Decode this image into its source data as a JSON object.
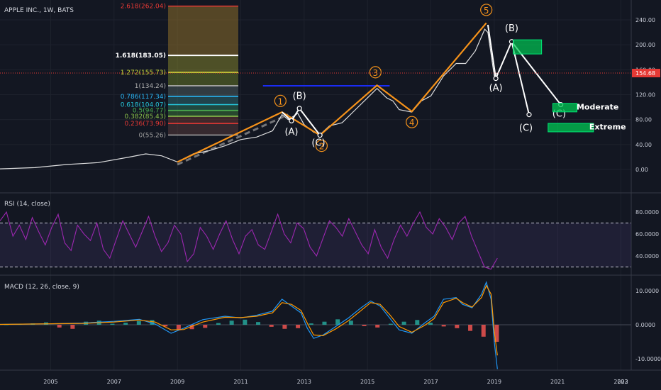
{
  "title": "APPLE INC., 1W, BATS",
  "colors": {
    "background": "#131722",
    "price_line": "#f4f4f4",
    "wave_orange": "#f7931a",
    "wave_white": "#ffffff",
    "blue_level": "#1a2cf5",
    "red_level": "#e53935",
    "rsi_line": "#9c27b0",
    "macd_line": "#2196f3",
    "signal_line": "#ff9800",
    "hist_pos": "#26a69a",
    "hist_neg": "#ef5350",
    "target_green": "#00c853"
  },
  "chart_data": [
    {
      "type": "line",
      "name": "price",
      "title": "APPLE INC., 1W, BATS",
      "x_ticks": [
        "2005",
        "2007",
        "2009",
        "2011",
        "2013",
        "2015",
        "2017",
        "2019",
        "2021",
        "2023",
        "202"
      ],
      "y_ticks": [
        "240.00",
        "200.00",
        "160.00",
        "120.00",
        "80.00",
        "40.00",
        "0.00"
      ],
      "ylim": [
        -8,
        260
      ],
      "xlim": [
        2003.4,
        2023.1
      ],
      "current_price_label": "154.68",
      "current_price": 154.68,
      "series": [
        {
          "values": [
            [
              2003.4,
              1
            ],
            [
              2004.5,
              3
            ],
            [
              2005.5,
              8
            ],
            [
              2006.5,
              11
            ],
            [
              2007.5,
              20
            ],
            [
              2008.0,
              25
            ],
            [
              2008.5,
              22
            ],
            [
              2009.0,
              12
            ],
            [
              2009.5,
              25
            ],
            [
              2010.0,
              30
            ],
            [
              2010.5,
              38
            ],
            [
              2011.0,
              48
            ],
            [
              2011.5,
              52
            ],
            [
              2012.0,
              62
            ],
            [
              2012.3,
              88
            ],
            [
              2012.5,
              80
            ],
            [
              2012.8,
              90
            ],
            [
              2013.0,
              72
            ],
            [
              2013.3,
              60
            ],
            [
              2013.5,
              56
            ],
            [
              2013.8,
              70
            ],
            [
              2014.2,
              75
            ],
            [
              2014.6,
              95
            ],
            [
              2015.0,
              115
            ],
            [
              2015.3,
              130
            ],
            [
              2015.6,
              115
            ],
            [
              2015.8,
              110
            ],
            [
              2016.0,
              96
            ],
            [
              2016.4,
              92
            ],
            [
              2016.7,
              110
            ],
            [
              2017.0,
              118
            ],
            [
              2017.4,
              150
            ],
            [
              2017.8,
              170
            ],
            [
              2018.1,
              170
            ],
            [
              2018.4,
              190
            ],
            [
              2018.7,
              225
            ],
            [
              2018.8,
              220
            ],
            [
              2019.0,
              150
            ],
            [
              2019.1,
              155
            ]
          ]
        }
      ],
      "fib_levels": [
        {
          "label": "2.618(262.04)",
          "value": 262.04,
          "color": "#e53935"
        },
        {
          "label": "1.618(183.05)",
          "value": 183.05,
          "color": "#ffffff"
        },
        {
          "label": "1.272(155.73)",
          "value": 155.73,
          "color": "#cddc39"
        },
        {
          "label": "1(134.24)",
          "value": 134.24,
          "color": "#b0b0b0"
        },
        {
          "label": "0.786(117.34)",
          "value": 117.34,
          "color": "#29b6f6"
        },
        {
          "label": "0.618(104.07)",
          "value": 104.07,
          "color": "#26c6da"
        },
        {
          "label": "0.5(94.77)",
          "value": 94.77,
          "color": "#4caf50"
        },
        {
          "label": "0.382(85.43)",
          "value": 85.43,
          "color": "#8bc34a"
        },
        {
          "label": "0.236(73.90)",
          "value": 73.9,
          "color": "#e53935"
        },
        {
          "label": "0(55.26)",
          "value": 55.26,
          "color": "#9e9e9e"
        }
      ],
      "wave_labels": [
        "1",
        "(B)",
        "(A)",
        "(C)",
        "2",
        "3",
        "4",
        "5",
        "(B)",
        "(A)",
        "(C)",
        "(C)"
      ],
      "targets": [
        "Moderate",
        "Extreme"
      ]
    },
    {
      "type": "line",
      "name": "rsi",
      "title": "RSI (14, close)",
      "y_ticks": [
        "80.0000",
        "60.0000",
        "40.0000"
      ],
      "ylim": [
        25,
        90
      ],
      "bands": [
        70,
        30
      ],
      "values": [
        72,
        80,
        58,
        68,
        55,
        75,
        62,
        50,
        66,
        78,
        52,
        45,
        68,
        60,
        54,
        70,
        46,
        38,
        55,
        72,
        60,
        48,
        62,
        76,
        58,
        44,
        52,
        68,
        60,
        35,
        42,
        66,
        58,
        46,
        60,
        72,
        55,
        42,
        58,
        64,
        50,
        46,
        62,
        78,
        60,
        52,
        70,
        65,
        48,
        40,
        56,
        72,
        66,
        58,
        74,
        62,
        50,
        42,
        64,
        48,
        38,
        55,
        68,
        58,
        70,
        80,
        66,
        60,
        74,
        66,
        55,
        70,
        76,
        58,
        44,
        30,
        28,
        38
      ]
    },
    {
      "type": "line",
      "name": "macd",
      "title": "MACD (12, 26, close, 9)",
      "y_ticks": [
        "10.0000",
        "0.0000",
        "-10.0000"
      ],
      "ylim": [
        -13,
        13
      ],
      "series": [
        {
          "name": "MACD",
          "values": [
            [
              2003.4,
              0.1
            ],
            [
              2005.0,
              0.3
            ],
            [
              2006.0,
              0.5
            ],
            [
              2007.0,
              1.0
            ],
            [
              2007.8,
              1.6
            ],
            [
              2008.3,
              0.2
            ],
            [
              2008.8,
              -2.5
            ],
            [
              2009.2,
              -1.0
            ],
            [
              2009.8,
              1.5
            ],
            [
              2010.5,
              2.5
            ],
            [
              2011.0,
              2.0
            ],
            [
              2011.5,
              2.8
            ],
            [
              2012.0,
              4.0
            ],
            [
              2012.3,
              7.5
            ],
            [
              2012.6,
              5.5
            ],
            [
              2012.9,
              3.5
            ],
            [
              2013.1,
              -1.0
            ],
            [
              2013.3,
              -4.0
            ],
            [
              2013.6,
              -3.0
            ],
            [
              2014.0,
              -0.5
            ],
            [
              2014.4,
              2.0
            ],
            [
              2014.8,
              5.0
            ],
            [
              2015.1,
              7.0
            ],
            [
              2015.4,
              5.5
            ],
            [
              2015.7,
              2.0
            ],
            [
              2016.0,
              -1.5
            ],
            [
              2016.4,
              -2.5
            ],
            [
              2016.8,
              0.5
            ],
            [
              2017.1,
              2.5
            ],
            [
              2017.4,
              7.5
            ],
            [
              2017.8,
              8.0
            ],
            [
              2018.0,
              6.0
            ],
            [
              2018.3,
              5.0
            ],
            [
              2018.6,
              9.0
            ],
            [
              2018.75,
              12.5
            ],
            [
              2018.9,
              7.5
            ],
            [
              2019.0,
              -5.0
            ],
            [
              2019.1,
              -13.0
            ]
          ]
        },
        {
          "name": "Signal",
          "values": [
            [
              2003.4,
              0.1
            ],
            [
              2005.0,
              0.3
            ],
            [
              2006.0,
              0.4
            ],
            [
              2007.0,
              0.8
            ],
            [
              2007.8,
              1.4
            ],
            [
              2008.3,
              0.8
            ],
            [
              2008.8,
              -1.5
            ],
            [
              2009.2,
              -1.4
            ],
            [
              2009.8,
              0.8
            ],
            [
              2010.5,
              2.2
            ],
            [
              2011.0,
              2.1
            ],
            [
              2011.5,
              2.5
            ],
            [
              2012.0,
              3.5
            ],
            [
              2012.3,
              6.5
            ],
            [
              2012.6,
              6.0
            ],
            [
              2012.9,
              4.2
            ],
            [
              2013.1,
              0.5
            ],
            [
              2013.3,
              -3.0
            ],
            [
              2013.6,
              -3.2
            ],
            [
              2014.0,
              -1.2
            ],
            [
              2014.4,
              1.2
            ],
            [
              2014.8,
              4.2
            ],
            [
              2015.1,
              6.5
            ],
            [
              2015.4,
              6.0
            ],
            [
              2015.7,
              3.0
            ],
            [
              2016.0,
              -0.5
            ],
            [
              2016.4,
              -2.2
            ],
            [
              2016.8,
              -0.2
            ],
            [
              2017.1,
              1.8
            ],
            [
              2017.4,
              6.5
            ],
            [
              2017.8,
              7.8
            ],
            [
              2018.0,
              6.5
            ],
            [
              2018.3,
              5.2
            ],
            [
              2018.6,
              8.0
            ],
            [
              2018.75,
              11.5
            ],
            [
              2018.9,
              9.0
            ],
            [
              2019.0,
              -2.0
            ],
            [
              2019.1,
              -9.0
            ]
          ]
        }
      ],
      "histogram": [
        0.1,
        0.2,
        0.4,
        0.7,
        -0.8,
        -1.2,
        0.9,
        1.2,
        0.3,
        0.6,
        1.1,
        1.4,
        -0.5,
        -1.6,
        -1.3,
        -0.9,
        0.5,
        1.2,
        1.5,
        0.8,
        -0.6,
        -1.2,
        -1.0,
        0.4,
        0.9,
        1.6,
        1.2,
        -0.4,
        -0.8,
        0.3,
        0.9,
        1.4,
        0.6,
        -0.5,
        -1.0,
        -1.8,
        -3.5,
        -5.0
      ]
    }
  ]
}
